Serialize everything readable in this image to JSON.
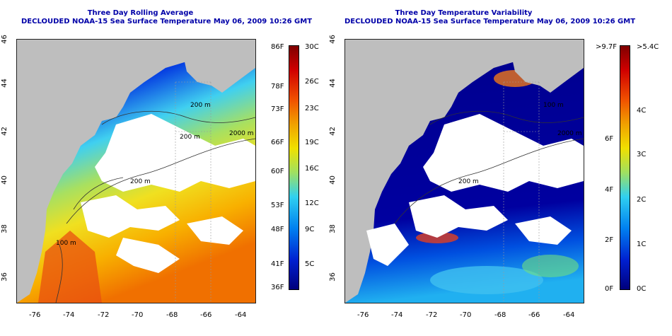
{
  "panels": {
    "left": {
      "title_line1": "Three Day Rolling Average",
      "title_line2": "DECLOUDED NOAA-15 Sea Surface Temperature May 06, 2009 10:26 GMT",
      "contour_labels": [
        "200 m",
        "2000 m",
        "200 m",
        "200 m",
        "100 m"
      ],
      "colorbar": {
        "fahrenheit": [
          "86F",
          "78F",
          "73F",
          "66F",
          "60F",
          "53F",
          "48F",
          "41F",
          "36F"
        ],
        "celsius": [
          "30C",
          "26C",
          "23C",
          "19C",
          "16C",
          "12C",
          "9C",
          "5C"
        ]
      }
    },
    "right": {
      "title_line1": "Three Day Temperature Variability",
      "title_line2": "DECLOUDED NOAA-15 Sea Surface Temperature May 06, 2009 10:26 GMT",
      "contour_labels": [
        "100 m",
        "2000 m",
        "200 m"
      ],
      "colorbar": {
        "fahrenheit": [
          ">9.7F",
          "6F",
          "4F",
          "2F",
          "0F"
        ],
        "celsius": [
          ">5.4C",
          "4C",
          "3C",
          "2C",
          "1C",
          "0C"
        ]
      }
    }
  },
  "axes": {
    "x_ticks": [
      "-76",
      "-74",
      "-72",
      "-70",
      "-68",
      "-66",
      "-64"
    ],
    "y_ticks": [
      "46",
      "44",
      "42",
      "40",
      "38",
      "36"
    ]
  },
  "colors": {
    "land": "#bebebe",
    "cloud": "#ffffff",
    "title": "#0000a8"
  }
}
